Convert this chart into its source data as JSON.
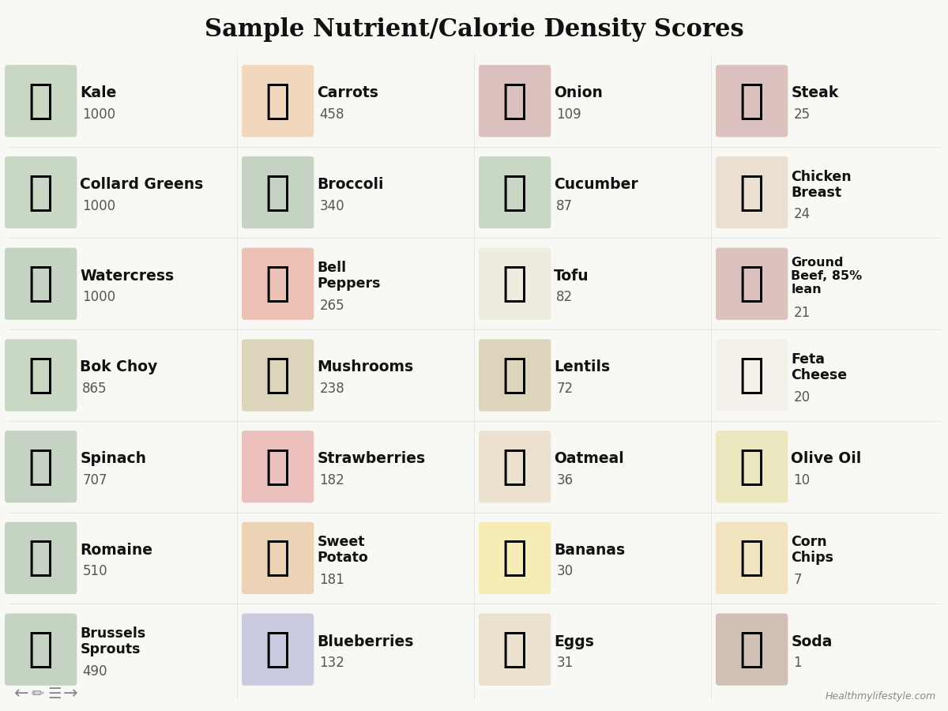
{
  "title": "Sample Nutrient/Calorie Density Scores",
  "background_color": "#f8f8f4",
  "title_fontsize": 22,
  "title_fontweight": "bold",
  "watermark": "Healthmylifestyle.com",
  "foods": [
    {
      "name": "Kale",
      "score": "1000",
      "col": 0,
      "row": 0
    },
    {
      "name": "Carrots",
      "score": "458",
      "col": 1,
      "row": 0
    },
    {
      "name": "Onion",
      "score": "109",
      "col": 2,
      "row": 0
    },
    {
      "name": "Steak",
      "score": "25",
      "col": 3,
      "row": 0
    },
    {
      "name": "Collard Greens",
      "score": "1000",
      "col": 0,
      "row": 1
    },
    {
      "name": "Broccoli",
      "score": "340",
      "col": 1,
      "row": 1
    },
    {
      "name": "Cucumber",
      "score": "87",
      "col": 2,
      "row": 1
    },
    {
      "name": "Chicken\nBreast",
      "score": "24",
      "col": 3,
      "row": 1
    },
    {
      "name": "Watercress",
      "score": "1000",
      "col": 0,
      "row": 2
    },
    {
      "name": "Bell\nPeppers",
      "score": "265",
      "col": 1,
      "row": 2
    },
    {
      "name": "Tofu",
      "score": "82",
      "col": 2,
      "row": 2
    },
    {
      "name": "Ground\nBeef, 85%\nlean",
      "score": "21",
      "col": 3,
      "row": 2
    },
    {
      "name": "Bok Choy",
      "score": "865",
      "col": 0,
      "row": 3
    },
    {
      "name": "Mushrooms",
      "score": "238",
      "col": 1,
      "row": 3
    },
    {
      "name": "Lentils",
      "score": "72",
      "col": 2,
      "row": 3
    },
    {
      "name": "Feta\nCheese",
      "score": "20",
      "col": 3,
      "row": 3
    },
    {
      "name": "Spinach",
      "score": "707",
      "col": 0,
      "row": 4
    },
    {
      "name": "Strawberries",
      "score": "182",
      "col": 1,
      "row": 4
    },
    {
      "name": "Oatmeal",
      "score": "36",
      "col": 2,
      "row": 4
    },
    {
      "name": "Olive Oil",
      "score": "10",
      "col": 3,
      "row": 4
    },
    {
      "name": "Romaine",
      "score": "510",
      "col": 0,
      "row": 5
    },
    {
      "name": "Sweet\nPotato",
      "score": "181",
      "col": 1,
      "row": 5
    },
    {
      "name": "Bananas",
      "score": "30",
      "col": 2,
      "row": 5
    },
    {
      "name": "Corn\nChips",
      "score": "7",
      "col": 3,
      "row": 5
    },
    {
      "name": "Brussels\nSprouts",
      "score": "490",
      "col": 0,
      "row": 6
    },
    {
      "name": "Blueberries",
      "score": "132",
      "col": 1,
      "row": 6
    },
    {
      "name": "Eggs",
      "score": "31",
      "col": 2,
      "row": 6
    },
    {
      "name": "Soda",
      "score": "1",
      "col": 3,
      "row": 6
    }
  ]
}
